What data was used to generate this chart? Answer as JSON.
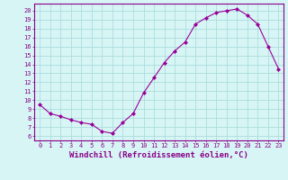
{
  "x": [
    0,
    1,
    2,
    3,
    4,
    5,
    6,
    7,
    8,
    9,
    10,
    11,
    12,
    13,
    14,
    15,
    16,
    17,
    18,
    19,
    20,
    21,
    22,
    23
  ],
  "y": [
    9.5,
    8.5,
    8.2,
    7.8,
    7.5,
    7.3,
    6.5,
    6.3,
    7.5,
    8.5,
    10.8,
    12.5,
    14.2,
    15.5,
    16.5,
    18.5,
    19.2,
    19.8,
    20.0,
    20.2,
    19.5,
    18.5,
    16.0,
    13.5
  ],
  "line_color": "#990099",
  "marker": "D",
  "marker_size": 2.0,
  "bg_color": "#d8f5f5",
  "grid_color": "#aadddd",
  "axis_color": "#880088",
  "xlabel": "Windchill (Refroidissement éolien,°C)",
  "xlabel_fontsize": 6.5,
  "ytick_labels": [
    "6",
    "7",
    "8",
    "9",
    "10",
    "11",
    "12",
    "13",
    "14",
    "15",
    "16",
    "17",
    "18",
    "19",
    "20"
  ],
  "xtick_labels": [
    "0",
    "1",
    "2",
    "3",
    "4",
    "5",
    "6",
    "7",
    "8",
    "9",
    "10",
    "11",
    "12",
    "13",
    "14",
    "15",
    "16",
    "17",
    "18",
    "19",
    "20",
    "21",
    "22",
    "23"
  ],
  "ylim": [
    5.5,
    20.8
  ],
  "xlim": [
    -0.5,
    23.5
  ],
  "yticks": [
    6,
    7,
    8,
    9,
    10,
    11,
    12,
    13,
    14,
    15,
    16,
    17,
    18,
    19,
    20
  ],
  "xticks": [
    0,
    1,
    2,
    3,
    4,
    5,
    6,
    7,
    8,
    9,
    10,
    11,
    12,
    13,
    14,
    15,
    16,
    17,
    18,
    19,
    20,
    21,
    22,
    23
  ],
  "tick_fontsize": 5.0,
  "line_width": 0.8
}
